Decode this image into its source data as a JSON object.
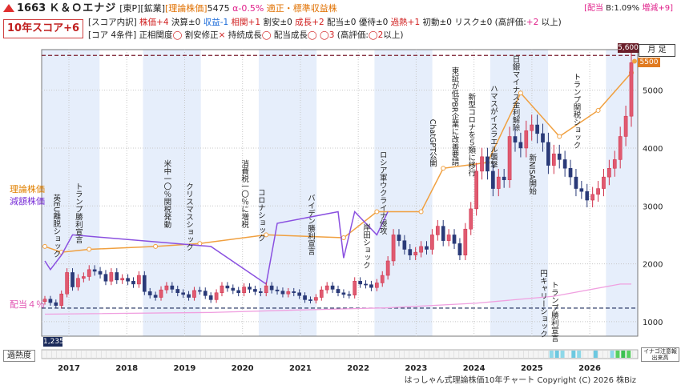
{
  "header": {
    "code": "1663",
    "name": "Ｋ＆Ｏエナジ",
    "market": "[東P][鉱業]",
    "category": "[理論株価]",
    "price": "5475",
    "alpha": "α-0.5%",
    "verdict": "適正・標準収益株",
    "right_stat_prefix": "[配当",
    "right_stat_b": " B:1.09%",
    "right_stat_zg": " 増減+9]"
  },
  "score": {
    "label": "10年スコア+6"
  },
  "score_detail": {
    "prefix": "[スコア内訳]",
    "items": [
      {
        "text": "株価+4",
        "color": "red"
      },
      {
        "text": "決算±0",
        "color": "none"
      },
      {
        "text": "収益-1",
        "color": "blue"
      },
      {
        "text": "相関+1",
        "color": "red"
      },
      {
        "text": "割安±0",
        "color": "none"
      },
      {
        "text": "成長+2",
        "color": "red"
      },
      {
        "text": "配当±0",
        "color": "none"
      },
      {
        "text": "優待±0",
        "color": "none"
      },
      {
        "text": "過熱+1",
        "color": "red"
      },
      {
        "text": "初動±0",
        "color": "none"
      },
      {
        "text": "リスク±0",
        "color": "none"
      },
      {
        "text": "(高評価:",
        "color": "none"
      },
      {
        "text": "+2",
        "color": "pink"
      },
      {
        "text": "以上)",
        "color": "none"
      }
    ]
  },
  "core": {
    "prefix": "[コア 4条件]",
    "items": [
      {
        "label": "正相関度",
        "mark": "◯"
      },
      {
        "label": "割安修正",
        "mark": "×"
      },
      {
        "label": "持続成長",
        "mark": "◯"
      },
      {
        "label": "配当成長",
        "mark": "◯"
      }
    ],
    "summary": "◯3",
    "threshold_pre": "(高評価:",
    "threshold_val": "◯2",
    "threshold_post": "以上)"
  },
  "legend": {
    "theory": "理論株価",
    "impair": "減額株価",
    "dividend": "配当４％"
  },
  "labels": {
    "timeframe": "月 足",
    "top_price": "5,600",
    "current_price": "5500",
    "low_price": "1,235",
    "heat": "過熱度",
    "note": "イナゴ注意報\n出来高",
    "copyright": "はっしゃん式理論株価10年チャート Copyright (C) 2026 株Biz"
  },
  "chart_data": {
    "type": "candlestick",
    "x_axis": {
      "ticks": [
        "2017",
        "2018",
        "2019",
        "2020",
        "2021",
        "2022",
        "2023",
        "2024",
        "2025",
        "2026"
      ]
    },
    "y_axis": {
      "ticks": [
        1000,
        2000,
        3000,
        4000,
        5000
      ],
      "range": [
        750,
        5700
      ]
    },
    "reference_lines": {
      "high": 5600,
      "low": 1235
    },
    "close_series": [
      1390,
      1330,
      1280,
      1480,
      1850,
      1600,
      1750,
      1780,
      1900,
      1870,
      1820,
      1700,
      1850,
      1720,
      1750,
      1700,
      1650,
      1800,
      1520,
      1460,
      1420,
      1550,
      1620,
      1560,
      1500,
      1470,
      1420,
      1540,
      1530,
      1450,
      1380,
      1500,
      1620,
      1580,
      1540,
      1500,
      1600,
      1560,
      1520,
      1500,
      1620,
      1550,
      1530,
      1480,
      1520,
      1500,
      1450,
      1380,
      1370,
      1420,
      1550,
      1620,
      1560,
      1500,
      1470,
      1460,
      1700,
      1650,
      1640,
      1590,
      1670,
      1800,
      2050,
      2500,
      2400,
      2250,
      2150,
      2200,
      2300,
      2250,
      2500,
      2650,
      2400,
      2500,
      2350,
      2150,
      2600,
      2950,
      3600,
      3850,
      3600,
      3300,
      3500,
      3450,
      4200,
      4100,
      4000,
      4300,
      4400,
      4250,
      4100,
      3700,
      3900,
      3800,
      3650,
      3500,
      3300,
      3250,
      3100,
      3200,
      3300,
      3500,
      3650,
      3800,
      4200,
      4550,
      5475
    ],
    "theory_price": [
      [
        0,
        2300
      ],
      [
        3,
        2200
      ],
      [
        8,
        2250
      ],
      [
        20,
        2300
      ],
      [
        28,
        2350
      ],
      [
        40,
        2500
      ],
      [
        54,
        2450
      ],
      [
        60,
        2900
      ],
      [
        68,
        2900
      ],
      [
        72,
        3650
      ],
      [
        80,
        3750
      ],
      [
        86,
        4950
      ],
      [
        93,
        4200
      ],
      [
        100,
        4650
      ],
      [
        106,
        5300
      ]
    ],
    "impair_price": [
      [
        0,
        2050
      ],
      [
        1,
        1900
      ],
      [
        3,
        2150
      ],
      [
        5,
        2500
      ],
      [
        30,
        2300
      ],
      [
        40,
        1650
      ],
      [
        42,
        2700
      ],
      [
        53,
        2900
      ],
      [
        54,
        2100
      ],
      [
        56,
        2900
      ],
      [
        60,
        2500
      ],
      [
        62,
        2900
      ]
    ],
    "dividend_line": [
      [
        0,
        1130
      ],
      [
        30,
        1160
      ],
      [
        45,
        1200
      ],
      [
        62,
        1240
      ],
      [
        78,
        1320
      ],
      [
        92,
        1440
      ],
      [
        104,
        1650
      ],
      [
        106,
        1650
      ]
    ],
    "annotations": [
      {
        "text": "英EU離脱ショック",
        "x": 2,
        "y": 3200
      },
      {
        "text": "トランプ勝利宣言",
        "x": 6,
        "y": 3400
      },
      {
        "text": "米中一〇％関税発動",
        "x": 22,
        "y": 3800
      },
      {
        "text": "クリスマスショック",
        "x": 26,
        "y": 3400
      },
      {
        "text": "消費税一〇％に増税",
        "x": 36,
        "y": 3800
      },
      {
        "text": "コロナショック",
        "x": 39,
        "y": 3300
      },
      {
        "text": "バイデン勝利宣言",
        "x": 48,
        "y": 3200
      },
      {
        "text": "ロシア軍ウクライナ侵攻",
        "x": 61,
        "y": 3950
      },
      {
        "text": "岸田ショック",
        "x": 58,
        "y": 2700
      },
      {
        "text": "ChatGPT公開",
        "x": 70,
        "y": 4500
      },
      {
        "text": "東証が低PBR企業に改善要請",
        "x": 74,
        "y": 5400
      },
      {
        "text": "新型コロナを５類に移行",
        "x": 77,
        "y": 4950
      },
      {
        "text": "ハマスがイスラエル襲撃",
        "x": 81,
        "y": 5100
      },
      {
        "text": "日銀マイナス金利解除",
        "x": 85,
        "y": 5600
      },
      {
        "text": "新NISA開始",
        "x": 88,
        "y": 3900
      },
      {
        "text": "円キャリーショック",
        "x": 90,
        "y": 1900
      },
      {
        "text": "トランプ関税ショック",
        "x": 96,
        "y": 5300
      },
      {
        "text": "トランプ勝利宣言",
        "x": 92,
        "y": 1700
      }
    ]
  }
}
